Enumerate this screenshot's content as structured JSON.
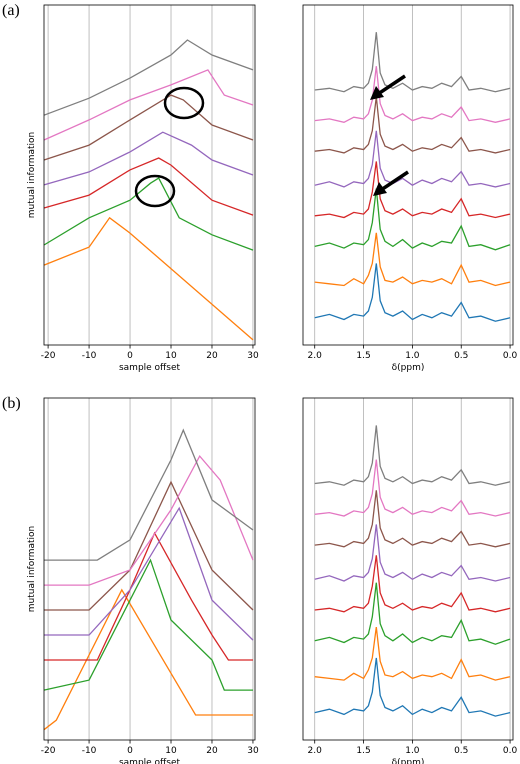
{
  "chart_data": [
    {
      "type": "line",
      "label": "(a)",
      "xlabel": "sample offset",
      "ylabel": "mutual information",
      "xlim": [
        -21,
        30.5
      ],
      "ylim": [
        0,
        10
      ],
      "xticks": [
        -20,
        -10,
        0,
        10,
        20,
        30
      ],
      "grid": true,
      "series": [
        {
          "color": "#ff7f0e",
          "x": [
            -21,
            -10,
            -5,
            0,
            30
          ],
          "values": [
            2.35,
            2.88,
            3.74,
            3.29,
            0.15
          ]
        },
        {
          "color": "#2ca02c",
          "x": [
            -21,
            -10,
            0,
            5,
            7,
            12,
            20,
            30
          ],
          "values": [
            2.94,
            3.74,
            4.26,
            4.76,
            4.91,
            3.74,
            3.24,
            2.79
          ]
        },
        {
          "color": "#d62728",
          "x": [
            -21,
            -10,
            0,
            7,
            10,
            20,
            30
          ],
          "values": [
            4.03,
            4.41,
            5.15,
            5.5,
            5.29,
            4.26,
            3.82
          ]
        },
        {
          "color": "#9467bd",
          "x": [
            -21,
            -10,
            0,
            8,
            15,
            20,
            30
          ],
          "values": [
            4.71,
            5.09,
            5.68,
            6.26,
            5.88,
            5.44,
            5.0
          ]
        },
        {
          "color": "#8c564b",
          "x": [
            -21,
            -10,
            0,
            10,
            13,
            20,
            30
          ],
          "values": [
            5.44,
            5.88,
            6.62,
            7.35,
            7.21,
            6.47,
            6.03
          ]
        },
        {
          "color": "#e377c2",
          "x": [
            -21,
            -10,
            0,
            10,
            19,
            23,
            30
          ],
          "values": [
            6.03,
            6.62,
            7.21,
            7.65,
            8.09,
            7.35,
            7.06
          ]
        },
        {
          "color": "#7f7f7f",
          "x": [
            -21,
            -10,
            0,
            10,
            14,
            20,
            30
          ],
          "values": [
            6.76,
            7.26,
            7.85,
            8.53,
            8.97,
            8.53,
            8.09
          ]
        }
      ]
    },
    {
      "type": "line",
      "xlabel": "δ(ppm)",
      "xlim": [
        2.12,
        -0.03
      ],
      "ylim": [
        0,
        10
      ],
      "xticks": [
        {
          "value": 2,
          "label": "2.0"
        },
        1.5,
        {
          "value": 1,
          "label": "1.0"
        },
        0.5,
        {
          "value": 0,
          "label": "0.0"
        }
      ],
      "grid": true,
      "x": [
        2.0,
        1.85,
        1.7,
        1.6,
        1.5,
        1.45,
        1.41,
        1.37,
        1.33,
        1.28,
        1.2,
        1.1,
        1.0,
        0.9,
        0.8,
        0.7,
        0.6,
        0.5,
        0.42,
        0.3,
        0.15,
        0.0
      ],
      "series": [
        {
          "color": "#1f77b4",
          "values": [
            0.8,
            0.9,
            0.75,
            0.9,
            0.85,
            1.0,
            1.4,
            2.4,
            1.3,
            0.95,
            0.85,
            1.0,
            0.75,
            0.9,
            0.8,
            0.95,
            0.85,
            1.25,
            0.8,
            0.85,
            0.7,
            0.8
          ]
        },
        {
          "color": "#ff7f0e",
          "values": [
            1.85,
            1.8,
            1.75,
            1.95,
            1.8,
            2.05,
            2.4,
            3.3,
            2.3,
            1.9,
            1.85,
            2.0,
            1.8,
            1.9,
            1.85,
            1.95,
            1.8,
            2.35,
            1.85,
            1.9,
            1.75,
            1.85
          ]
        },
        {
          "color": "#2ca02c",
          "values": [
            2.9,
            3.0,
            2.85,
            3.0,
            2.95,
            3.1,
            3.6,
            4.6,
            3.4,
            3.05,
            2.9,
            3.1,
            2.85,
            3.0,
            2.9,
            3.05,
            3.0,
            3.5,
            2.9,
            2.95,
            2.8,
            2.95
          ]
        },
        {
          "color": "#d62728",
          "values": [
            3.8,
            3.85,
            3.75,
            3.9,
            3.85,
            4.0,
            4.5,
            5.4,
            4.3,
            3.95,
            3.85,
            4.0,
            3.8,
            3.9,
            3.85,
            4.0,
            3.9,
            4.3,
            3.8,
            3.85,
            3.75,
            3.85
          ]
        },
        {
          "color": "#9467bd",
          "values": [
            4.7,
            4.8,
            4.65,
            4.8,
            4.75,
            4.9,
            5.3,
            6.3,
            5.2,
            4.85,
            4.75,
            4.9,
            4.7,
            4.85,
            4.75,
            4.9,
            4.8,
            5.1,
            4.7,
            4.75,
            4.65,
            4.75
          ]
        },
        {
          "color": "#8c564b",
          "values": [
            5.7,
            5.75,
            5.65,
            5.8,
            5.75,
            5.9,
            6.3,
            7.3,
            6.2,
            5.85,
            5.75,
            5.9,
            5.7,
            5.8,
            5.75,
            5.9,
            5.8,
            6.1,
            5.7,
            5.75,
            5.65,
            5.75
          ]
        },
        {
          "color": "#e377c2",
          "values": [
            6.6,
            6.65,
            6.55,
            6.7,
            6.65,
            6.8,
            7.2,
            8.2,
            7.1,
            6.75,
            6.65,
            6.8,
            6.6,
            6.7,
            6.65,
            6.8,
            6.7,
            7.0,
            6.6,
            6.65,
            6.55,
            6.65
          ]
        },
        {
          "color": "#7f7f7f",
          "values": [
            7.5,
            7.55,
            7.45,
            7.6,
            7.55,
            7.7,
            8.1,
            9.2,
            8.0,
            7.65,
            7.55,
            7.7,
            7.5,
            7.6,
            7.55,
            7.7,
            7.6,
            7.9,
            7.5,
            7.55,
            7.45,
            7.55
          ]
        }
      ]
    },
    {
      "type": "line",
      "label": "(b)",
      "xlabel": "sample offset",
      "ylabel": "mutual information",
      "xlim": [
        -21,
        30.5
      ],
      "ylim": [
        0,
        10
      ],
      "xticks": [
        -20,
        -10,
        0,
        10,
        20,
        30
      ],
      "grid": true,
      "series": [
        {
          "color": "#ff7f0e",
          "x": [
            -21,
            -18,
            -2,
            16,
            30
          ],
          "values": [
            0.3,
            0.58,
            4.39,
            0.73,
            0.73
          ]
        },
        {
          "color": "#2ca02c",
          "x": [
            -21,
            -10,
            5,
            10,
            20,
            23,
            30
          ],
          "values": [
            1.46,
            1.75,
            5.26,
            3.51,
            2.34,
            1.46,
            1.46
          ]
        },
        {
          "color": "#d62728",
          "x": [
            -21,
            -8,
            0,
            6,
            15,
            20,
            24,
            30
          ],
          "values": [
            2.34,
            2.34,
            4.39,
            6.05,
            4.09,
            3.07,
            2.34,
            2.34
          ]
        },
        {
          "color": "#9467bd",
          "x": [
            -21,
            -10,
            0,
            12,
            20,
            30
          ],
          "values": [
            3.07,
            3.07,
            4.39,
            6.78,
            4.09,
            2.92
          ]
        },
        {
          "color": "#8c564b",
          "x": [
            -21,
            -10,
            0,
            10,
            20,
            30
          ],
          "values": [
            3.8,
            3.8,
            4.97,
            7.54,
            4.97,
            3.8
          ]
        },
        {
          "color": "#e377c2",
          "x": [
            -21,
            -10,
            0,
            10,
            17,
            22,
            30
          ],
          "values": [
            4.53,
            4.53,
            4.97,
            6.73,
            8.3,
            7.6,
            5.26
          ]
        },
        {
          "color": "#7f7f7f",
          "x": [
            -21,
            -8,
            0,
            10,
            13,
            20,
            30
          ],
          "values": [
            5.26,
            5.26,
            5.85,
            8.19,
            9.06,
            7.02,
            6.14
          ]
        }
      ]
    },
    {
      "type": "line",
      "xlabel": "δ(ppm)",
      "xlim": [
        2.12,
        -0.03
      ],
      "ylim": [
        0,
        10
      ],
      "xticks": [
        {
          "value": 2,
          "label": "2.0"
        },
        1.5,
        {
          "value": 1,
          "label": "1.0"
        },
        0.5,
        {
          "value": 0,
          "label": "0.0"
        }
      ],
      "grid": true,
      "x": [
        2.0,
        1.85,
        1.7,
        1.6,
        1.5,
        1.45,
        1.41,
        1.37,
        1.33,
        1.28,
        1.2,
        1.1,
        1.0,
        0.9,
        0.8,
        0.7,
        0.6,
        0.5,
        0.42,
        0.3,
        0.15,
        0.0
      ],
      "series": [
        {
          "color": "#1f77b4",
          "values": [
            0.8,
            0.9,
            0.75,
            0.9,
            0.85,
            1.0,
            1.4,
            2.4,
            1.3,
            0.95,
            0.85,
            1.0,
            0.75,
            0.9,
            0.8,
            0.95,
            0.85,
            1.25,
            0.8,
            0.85,
            0.7,
            0.8
          ]
        },
        {
          "color": "#ff7f0e",
          "values": [
            1.85,
            1.8,
            1.75,
            1.95,
            1.8,
            2.05,
            2.4,
            3.3,
            2.3,
            1.9,
            1.85,
            2.0,
            1.8,
            1.9,
            1.85,
            1.95,
            1.8,
            2.35,
            1.85,
            1.9,
            1.75,
            1.85
          ]
        },
        {
          "color": "#2ca02c",
          "values": [
            2.9,
            3.0,
            2.85,
            3.0,
            2.95,
            3.1,
            3.6,
            4.6,
            3.4,
            3.05,
            2.9,
            3.1,
            2.85,
            3.0,
            2.9,
            3.05,
            3.0,
            3.5,
            2.9,
            2.95,
            2.8,
            2.95
          ]
        },
        {
          "color": "#d62728",
          "values": [
            3.8,
            3.85,
            3.75,
            3.9,
            3.85,
            4.0,
            4.5,
            5.4,
            4.3,
            3.95,
            3.85,
            4.0,
            3.8,
            3.9,
            3.85,
            4.0,
            3.9,
            4.3,
            3.8,
            3.85,
            3.75,
            3.85
          ]
        },
        {
          "color": "#9467bd",
          "values": [
            4.7,
            4.8,
            4.65,
            4.8,
            4.75,
            4.9,
            5.3,
            6.3,
            5.2,
            4.85,
            4.75,
            4.9,
            4.7,
            4.85,
            4.75,
            4.9,
            4.8,
            5.1,
            4.7,
            4.75,
            4.65,
            4.75
          ]
        },
        {
          "color": "#8c564b",
          "values": [
            5.7,
            5.75,
            5.65,
            5.8,
            5.75,
            5.9,
            6.3,
            7.3,
            6.2,
            5.85,
            5.75,
            5.9,
            5.7,
            5.8,
            5.75,
            5.9,
            5.8,
            6.1,
            5.7,
            5.75,
            5.65,
            5.75
          ]
        },
        {
          "color": "#e377c2",
          "values": [
            6.6,
            6.65,
            6.55,
            6.7,
            6.65,
            6.8,
            7.2,
            8.2,
            7.1,
            6.75,
            6.65,
            6.8,
            6.6,
            6.7,
            6.65,
            6.8,
            6.7,
            7.0,
            6.6,
            6.65,
            6.55,
            6.65
          ]
        },
        {
          "color": "#7f7f7f",
          "values": [
            7.5,
            7.55,
            7.45,
            7.6,
            7.55,
            7.7,
            8.1,
            9.2,
            8.0,
            7.65,
            7.55,
            7.7,
            7.5,
            7.6,
            7.55,
            7.7,
            7.6,
            7.9,
            7.5,
            7.55,
            7.45,
            7.55
          ]
        }
      ]
    }
  ]
}
